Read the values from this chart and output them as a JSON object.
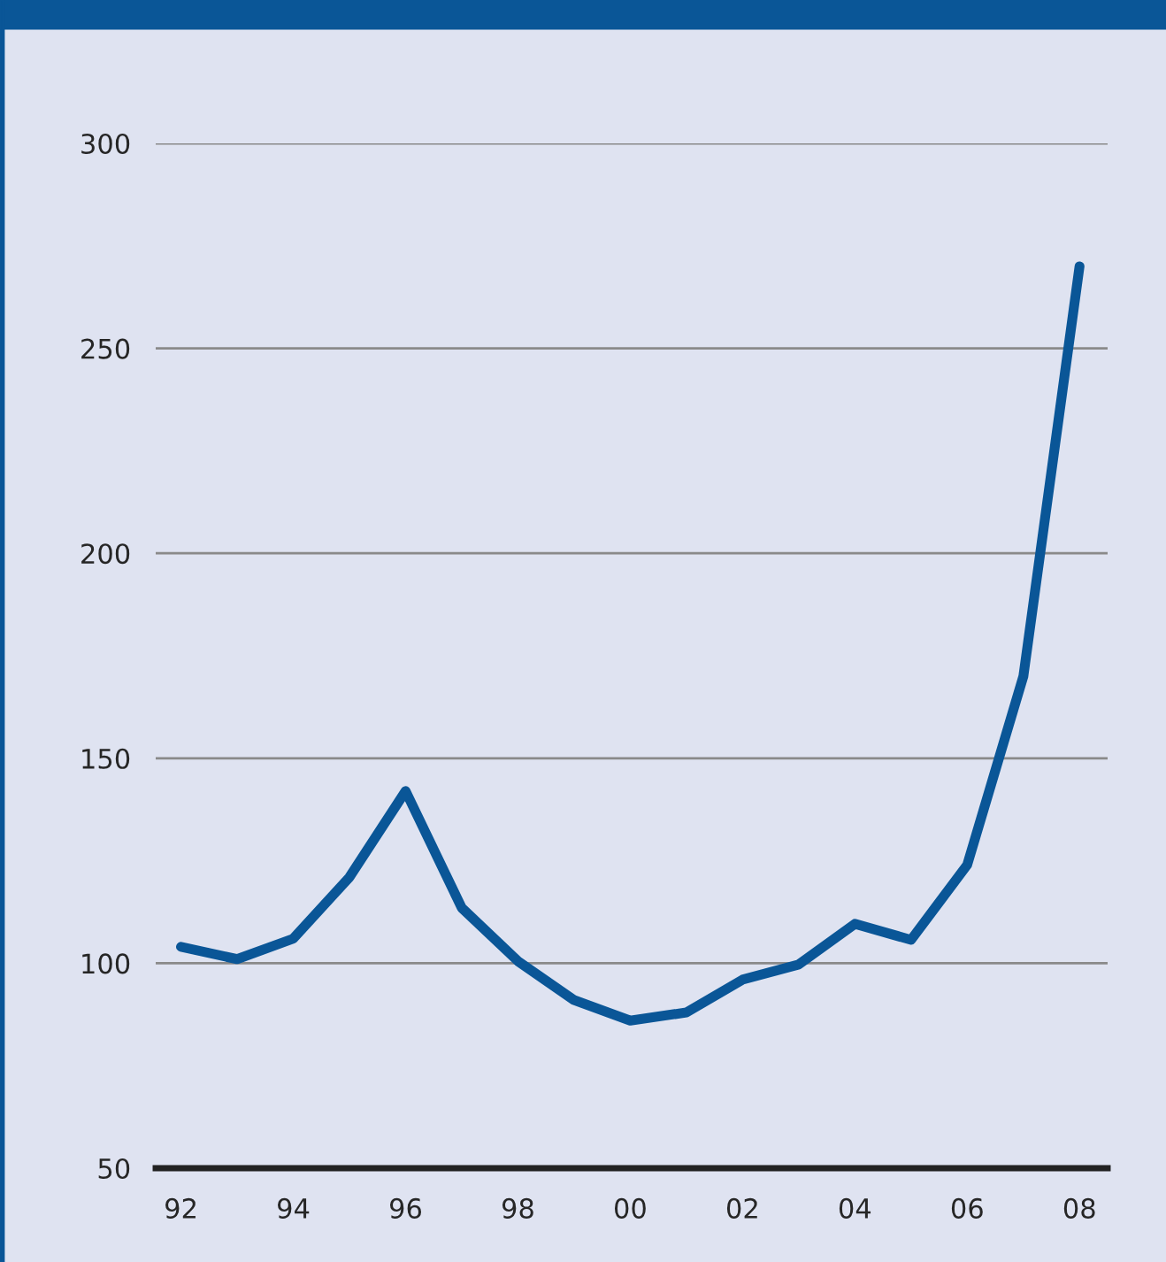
{
  "chart_data": {
    "type": "line",
    "categories": [
      "92",
      null,
      "94",
      null,
      "96",
      null,
      "98",
      null,
      "00",
      null,
      "02",
      null,
      "04",
      null,
      "06",
      null,
      "08"
    ],
    "series": [
      {
        "color": "#0a5697",
        "values": [
          104,
          101,
          106,
          121,
          142,
          113.5,
          100.5,
          91,
          86,
          88,
          96,
          99.7,
          109.6,
          105.7,
          124,
          170,
          270
        ]
      }
    ],
    "ylim": [
      50,
      300
    ],
    "yticks": [
      50,
      100,
      150,
      200,
      250,
      300
    ],
    "grid": "y",
    "marker": "none",
    "line_style": "solid"
  }
}
